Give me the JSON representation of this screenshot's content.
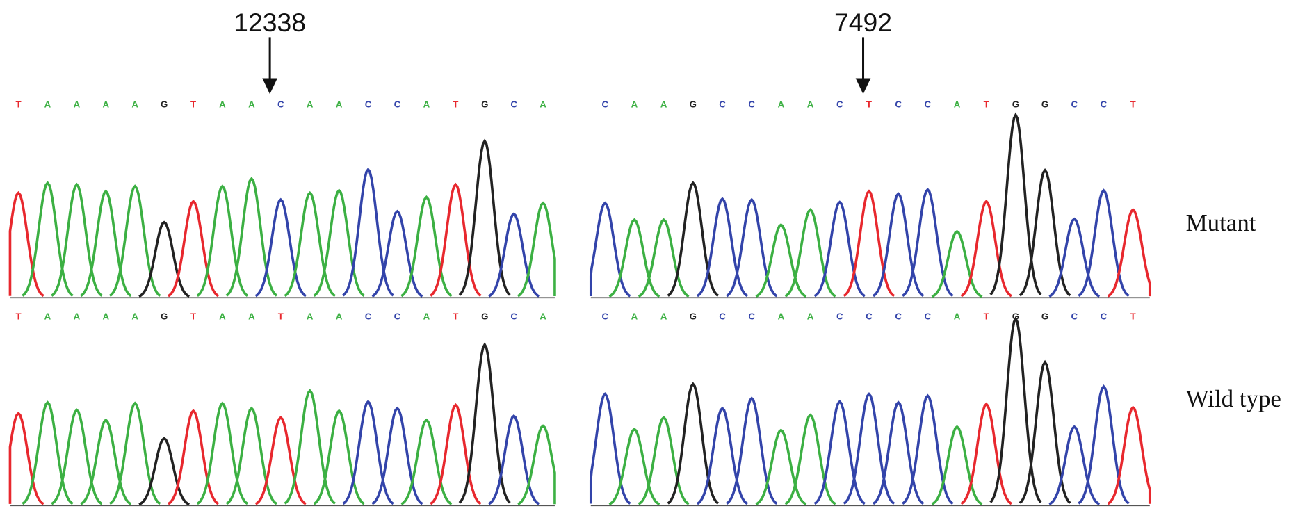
{
  "base_colors": {
    "A": "#3cb043",
    "C": "#3344aa",
    "G": "#222222",
    "T": "#e8282e"
  },
  "row_labels": [
    "Mutant",
    "Wild type"
  ],
  "panels": [
    {
      "position_label": "12338",
      "traces": [
        {
          "bases": [
            "T",
            "A",
            "A",
            "A",
            "A",
            "G",
            "T",
            "A",
            "A",
            "C",
            "A",
            "A",
            "C",
            "C",
            "A",
            "T",
            "G",
            "C",
            "A"
          ],
          "peak_heights": [
            125,
            137,
            135,
            127,
            133,
            90,
            115,
            133,
            142,
            117,
            125,
            128,
            153,
            103,
            120,
            135,
            187,
            100,
            113
          ]
        },
        {
          "bases": [
            "T",
            "A",
            "A",
            "A",
            "A",
            "G",
            "T",
            "A",
            "A",
            "T",
            "A",
            "A",
            "C",
            "C",
            "A",
            "T",
            "G",
            "C",
            "A"
          ],
          "peak_heights": [
            110,
            123,
            114,
            102,
            122,
            80,
            113,
            122,
            116,
            105,
            137,
            113,
            124,
            116,
            102,
            120,
            192,
            107,
            95
          ]
        }
      ]
    },
    {
      "position_label": "7492",
      "traces": [
        {
          "bases": [
            "C",
            "A",
            "A",
            "G",
            "C",
            "C",
            "A",
            "A",
            "C",
            "T",
            "C",
            "C",
            "A",
            "T",
            "G",
            "G",
            "C",
            "C",
            "T"
          ],
          "peak_heights": [
            113,
            93,
            93,
            137,
            118,
            117,
            87,
            105,
            114,
            127,
            124,
            129,
            79,
            115,
            218,
            152,
            94,
            128,
            105
          ]
        },
        {
          "bases": [
            "C",
            "A",
            "A",
            "G",
            "C",
            "C",
            "A",
            "A",
            "C",
            "C",
            "C",
            "C",
            "A",
            "T",
            "G",
            "G",
            "C",
            "C",
            "T"
          ],
          "peak_heights": [
            133,
            91,
            105,
            145,
            116,
            128,
            90,
            108,
            124,
            133,
            123,
            131,
            94,
            121,
            223,
            171,
            94,
            142,
            117
          ]
        }
      ]
    }
  ]
}
